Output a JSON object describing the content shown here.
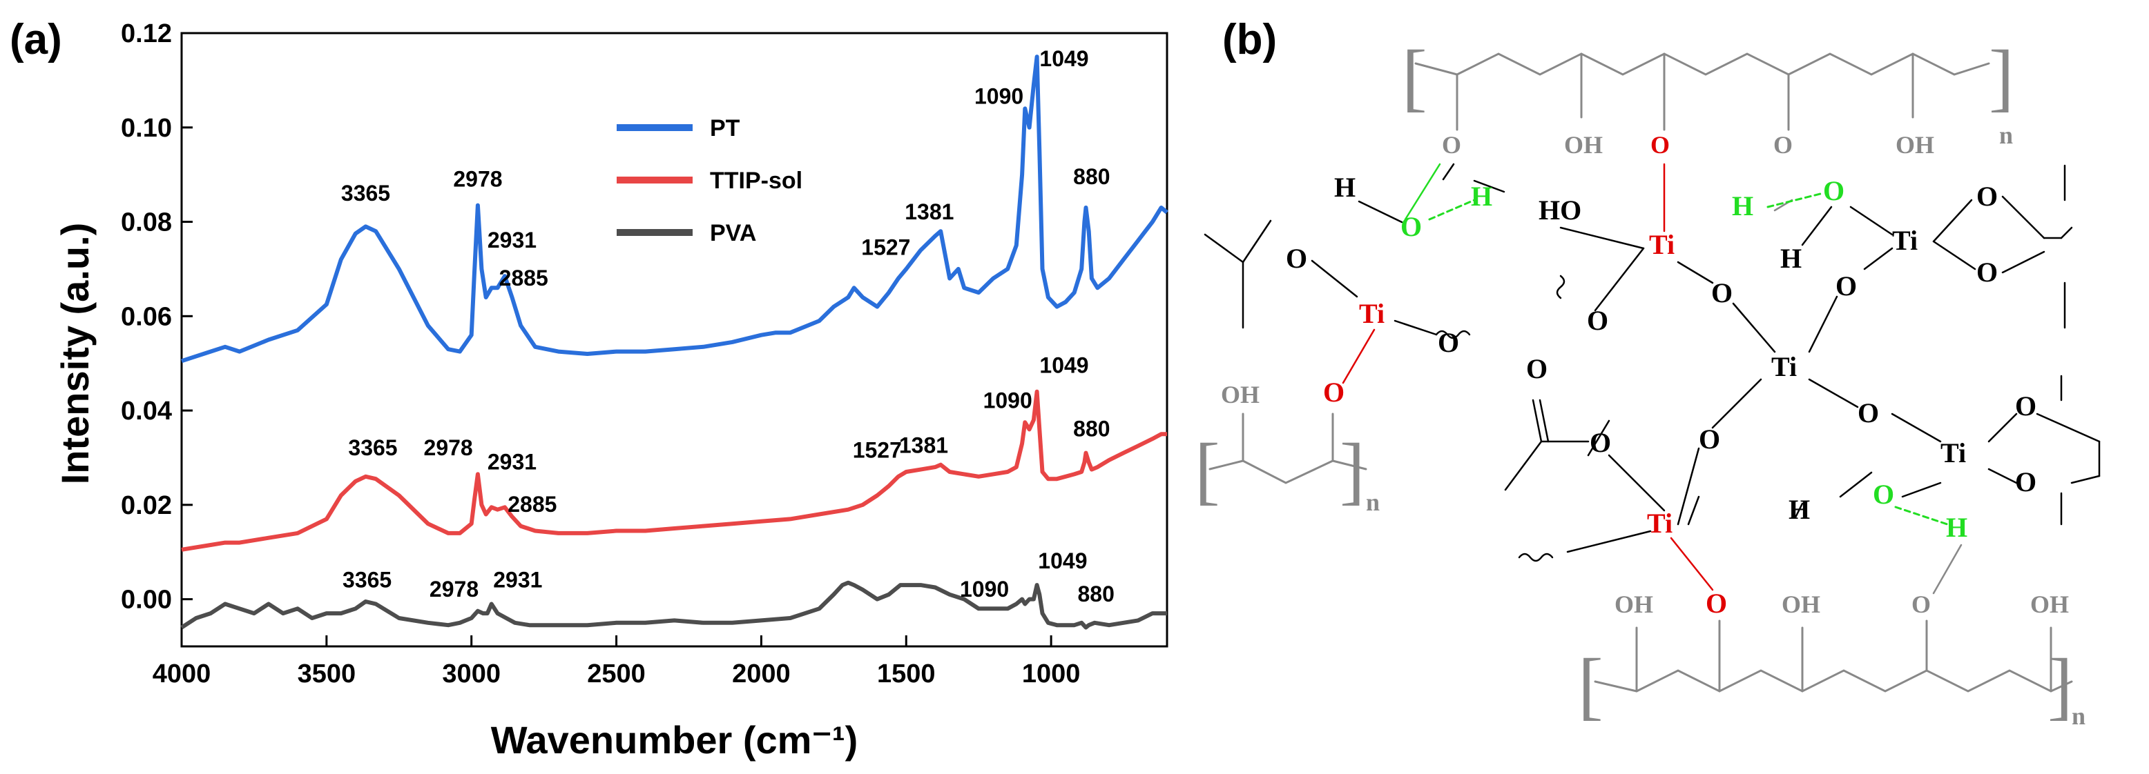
{
  "panel_a_label": "(a)",
  "panel_b_label": "(b)",
  "chart_data": {
    "type": "line",
    "title": "",
    "xlabel": "Wavenumber (cm⁻¹)",
    "ylabel": "Intensity (a.u.)",
    "xlim": [
      4000,
      600
    ],
    "ylim": [
      -0.01,
      0.12
    ],
    "xticks": [
      4000,
      3500,
      3000,
      2500,
      2000,
      1500,
      1000
    ],
    "xtick_labels": [
      "4000",
      "3500",
      "3000",
      "2500",
      "2000",
      "1500",
      "1000"
    ],
    "yticks": [
      0.0,
      0.02,
      0.04,
      0.06,
      0.08,
      0.1,
      0.12
    ],
    "ytick_labels": [
      "0.00",
      "0.02",
      "0.04",
      "0.06",
      "0.08",
      "0.10",
      "0.12"
    ],
    "legend": [
      "PT",
      "TTIP-sol",
      "PVA"
    ],
    "legend_position": "top-center",
    "series": [
      {
        "name": "PT",
        "color": "#2a6fdb",
        "x": [
          4000,
          3900,
          3850,
          3800,
          3700,
          3600,
          3500,
          3450,
          3400,
          3365,
          3330,
          3250,
          3150,
          3080,
          3040,
          3000,
          2990,
          2978,
          2965,
          2950,
          2931,
          2910,
          2885,
          2860,
          2830,
          2780,
          2700,
          2600,
          2500,
          2400,
          2300,
          2200,
          2100,
          2000,
          1950,
          1900,
          1800,
          1750,
          1700,
          1680,
          1650,
          1600,
          1560,
          1527,
          1500,
          1450,
          1400,
          1381,
          1350,
          1320,
          1300,
          1250,
          1200,
          1150,
          1120,
          1100,
          1090,
          1075,
          1060,
          1049,
          1040,
          1030,
          1010,
          980,
          950,
          920,
          895,
          885,
          880,
          870,
          860,
          840,
          800,
          750,
          700,
          650,
          620,
          600
        ],
        "values": [
          0.0505,
          0.0525,
          0.0535,
          0.0525,
          0.055,
          0.057,
          0.0625,
          0.072,
          0.0775,
          0.079,
          0.078,
          0.07,
          0.058,
          0.053,
          0.0525,
          0.056,
          0.069,
          0.0835,
          0.07,
          0.064,
          0.066,
          0.066,
          0.0685,
          0.064,
          0.058,
          0.0535,
          0.0525,
          0.052,
          0.0525,
          0.0525,
          0.053,
          0.0535,
          0.0545,
          0.056,
          0.0565,
          0.0565,
          0.059,
          0.062,
          0.064,
          0.066,
          0.064,
          0.062,
          0.065,
          0.068,
          0.07,
          0.074,
          0.077,
          0.078,
          0.068,
          0.07,
          0.066,
          0.065,
          0.068,
          0.07,
          0.075,
          0.09,
          0.104,
          0.1,
          0.109,
          0.115,
          0.095,
          0.07,
          0.064,
          0.062,
          0.063,
          0.065,
          0.07,
          0.08,
          0.083,
          0.078,
          0.068,
          0.066,
          0.068,
          0.072,
          0.076,
          0.08,
          0.083,
          0.082
        ]
      },
      {
        "name": "TTIP-sol",
        "color": "#e84545",
        "x": [
          4000,
          3900,
          3850,
          3800,
          3700,
          3600,
          3500,
          3450,
          3400,
          3365,
          3330,
          3250,
          3150,
          3080,
          3040,
          3000,
          2990,
          2978,
          2965,
          2950,
          2931,
          2910,
          2885,
          2860,
          2830,
          2780,
          2700,
          2600,
          2500,
          2400,
          2300,
          2200,
          2100,
          2000,
          1900,
          1800,
          1700,
          1650,
          1600,
          1560,
          1527,
          1500,
          1450,
          1400,
          1381,
          1350,
          1300,
          1250,
          1200,
          1150,
          1120,
          1100,
          1090,
          1075,
          1060,
          1049,
          1040,
          1030,
          1010,
          980,
          950,
          920,
          895,
          885,
          880,
          870,
          860,
          840,
          800,
          750,
          700,
          650,
          620,
          600
        ],
        "values": [
          0.0105,
          0.0115,
          0.012,
          0.012,
          0.013,
          0.014,
          0.017,
          0.022,
          0.025,
          0.026,
          0.0255,
          0.022,
          0.016,
          0.014,
          0.014,
          0.016,
          0.021,
          0.0265,
          0.02,
          0.018,
          0.0195,
          0.019,
          0.0195,
          0.0175,
          0.0155,
          0.0145,
          0.014,
          0.014,
          0.0145,
          0.0145,
          0.015,
          0.0155,
          0.016,
          0.0165,
          0.017,
          0.018,
          0.019,
          0.02,
          0.022,
          0.024,
          0.026,
          0.027,
          0.0275,
          0.028,
          0.0285,
          0.027,
          0.0265,
          0.026,
          0.0265,
          0.027,
          0.028,
          0.033,
          0.0375,
          0.036,
          0.038,
          0.044,
          0.036,
          0.027,
          0.0255,
          0.0255,
          0.026,
          0.0265,
          0.027,
          0.029,
          0.031,
          0.029,
          0.0275,
          0.028,
          0.0295,
          0.031,
          0.0325,
          0.034,
          0.035,
          0.035
        ]
      },
      {
        "name": "PVA",
        "color": "#4d4d4d",
        "x": [
          4000,
          3950,
          3900,
          3850,
          3800,
          3750,
          3700,
          3650,
          3600,
          3550,
          3500,
          3450,
          3400,
          3365,
          3330,
          3250,
          3150,
          3080,
          3040,
          3000,
          2978,
          2960,
          2945,
          2931,
          2910,
          2880,
          2850,
          2800,
          2700,
          2600,
          2500,
          2400,
          2300,
          2200,
          2100,
          2000,
          1900,
          1800,
          1750,
          1720,
          1700,
          1680,
          1650,
          1600,
          1560,
          1520,
          1500,
          1450,
          1400,
          1350,
          1300,
          1250,
          1200,
          1150,
          1120,
          1100,
          1090,
          1075,
          1060,
          1049,
          1040,
          1030,
          1010,
          980,
          950,
          920,
          895,
          880,
          870,
          850,
          800,
          750,
          700,
          650,
          620,
          600
        ],
        "values": [
          -0.006,
          -0.004,
          -0.003,
          -0.001,
          -0.002,
          -0.003,
          -0.001,
          -0.003,
          -0.002,
          -0.004,
          -0.003,
          -0.003,
          -0.002,
          -0.0005,
          -0.001,
          -0.004,
          -0.005,
          -0.0055,
          -0.005,
          -0.004,
          -0.0025,
          -0.003,
          -0.003,
          -0.001,
          -0.003,
          -0.004,
          -0.005,
          -0.0055,
          -0.0055,
          -0.0055,
          -0.005,
          -0.005,
          -0.0045,
          -0.005,
          -0.005,
          -0.0045,
          -0.004,
          -0.002,
          0.001,
          0.003,
          0.0035,
          0.003,
          0.002,
          0.0,
          0.001,
          0.003,
          0.003,
          0.003,
          0.0025,
          0.001,
          0.0,
          -0.002,
          -0.002,
          -0.002,
          -0.001,
          0.0,
          -0.001,
          0.0,
          0.0,
          0.003,
          0.001,
          -0.003,
          -0.005,
          -0.0055,
          -0.0055,
          -0.0055,
          -0.005,
          -0.006,
          -0.0055,
          -0.005,
          -0.0055,
          -0.005,
          -0.0045,
          -0.003,
          -0.003,
          -0.003
        ]
      }
    ],
    "annotations": [
      {
        "text": "3365",
        "x": 3365,
        "y": 0.0845
      },
      {
        "text": "2978",
        "x": 2978,
        "y": 0.0875
      },
      {
        "text": "2931",
        "x": 2860,
        "y": 0.0745
      },
      {
        "text": "2885",
        "x": 2820,
        "y": 0.0665
      },
      {
        "text": "1527",
        "x": 1570,
        "y": 0.073
      },
      {
        "text": "1381",
        "x": 1420,
        "y": 0.0805
      },
      {
        "text": "1090",
        "x": 1180,
        "y": 0.105
      },
      {
        "text": "1049",
        "x": 955,
        "y": 0.113
      },
      {
        "text": "880",
        "x": 860,
        "y": 0.088
      },
      {
        "text": "1049",
        "x": 955,
        "y": 0.048
      },
      {
        "text": "1090",
        "x": 1150,
        "y": 0.0405
      },
      {
        "text": "880",
        "x": 860,
        "y": 0.0345
      },
      {
        "text": "3365",
        "x": 3340,
        "y": 0.0305
      },
      {
        "text": "2978",
        "x": 3080,
        "y": 0.0305
      },
      {
        "text": "2931",
        "x": 2860,
        "y": 0.0275
      },
      {
        "text": "2885",
        "x": 2790,
        "y": 0.0185
      },
      {
        "text": "1527",
        "x": 1600,
        "y": 0.03
      },
      {
        "text": "1381",
        "x": 1440,
        "y": 0.031
      },
      {
        "text": "3365",
        "x": 3360,
        "y": 0.0025
      },
      {
        "text": "2978",
        "x": 3060,
        "y": 0.0005
      },
      {
        "text": "2931",
        "x": 2840,
        "y": 0.0025
      },
      {
        "text": "1090",
        "x": 1230,
        "y": 0.0005
      },
      {
        "text": "1049",
        "x": 960,
        "y": 0.0065
      },
      {
        "text": "880",
        "x": 845,
        "y": -0.0005
      }
    ]
  },
  "schematic": {
    "atoms": {
      "ti": "Ti",
      "o": "O",
      "h": "H",
      "ho": "HO",
      "oh": "OH",
      "n": "n"
    },
    "colors": {
      "polymer": "#888888",
      "titanium": "#e00000",
      "hydrogen_bond": "#22dd22",
      "default": "#000000"
    }
  }
}
